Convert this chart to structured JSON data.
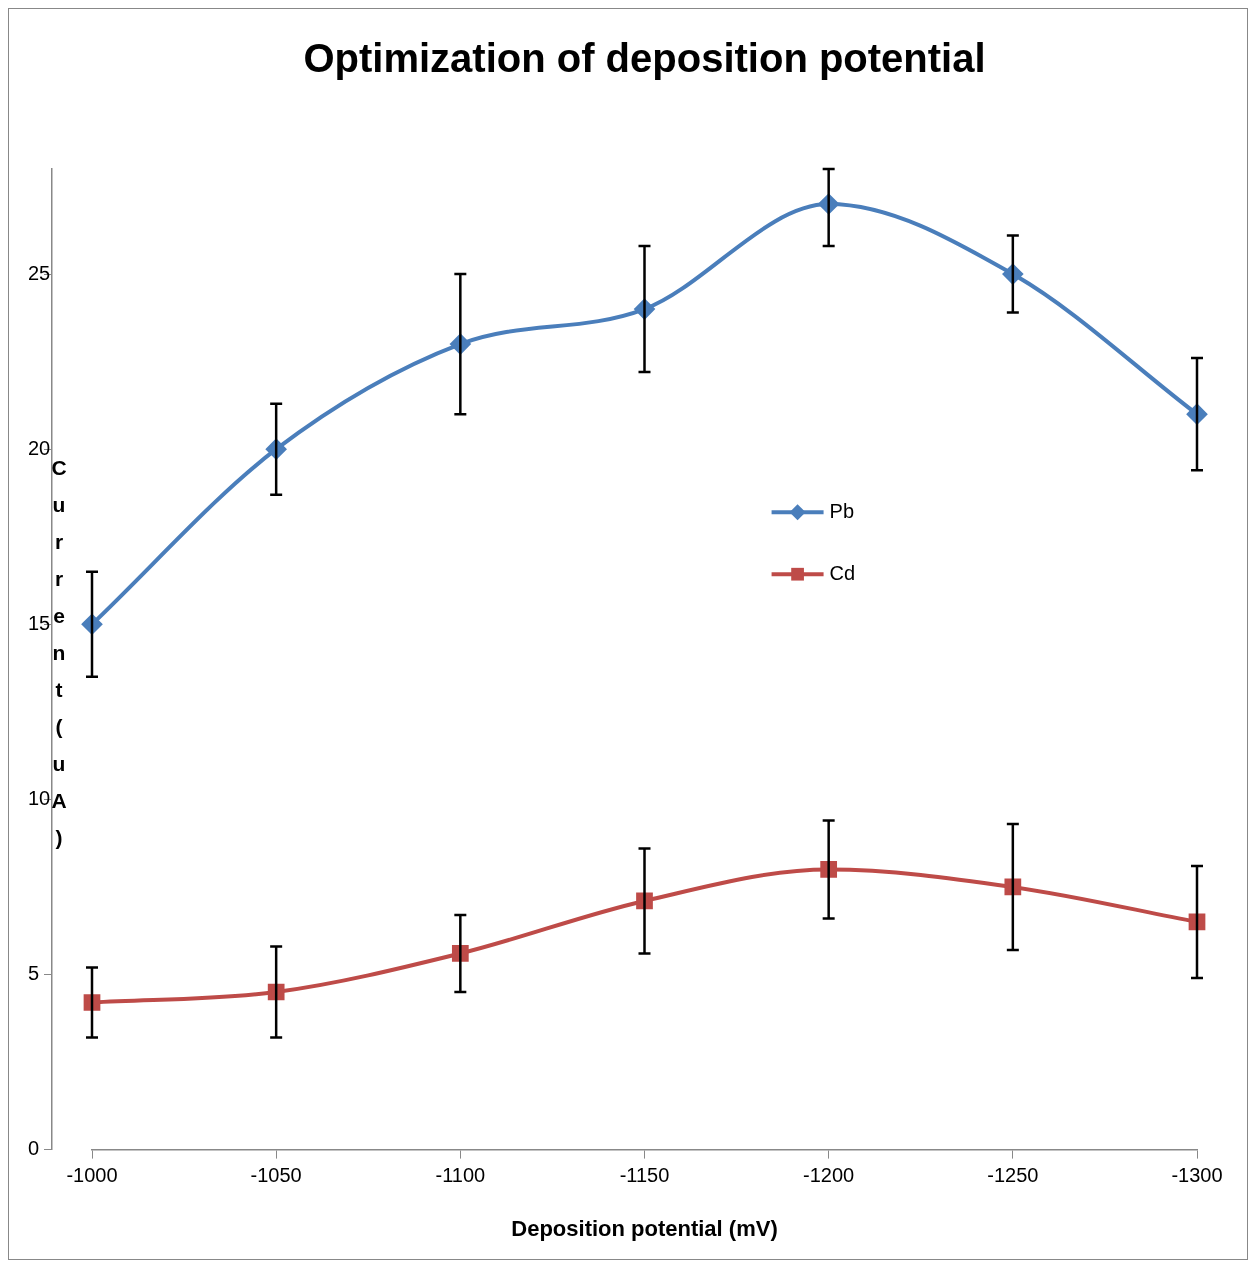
{
  "chart_data": {
    "type": "line",
    "title": "Optimization of deposition potential",
    "xlabel": "Deposition potential (mV)",
    "ylabel": "Current (uA)",
    "categories": [
      "-1000",
      "-1050",
      "-1100",
      "-1150",
      "-1200",
      "-1250",
      "-1300"
    ],
    "ylim": [
      0,
      28
    ],
    "yticks": [
      0,
      5,
      10,
      15,
      20,
      25
    ],
    "grid": false,
    "legend": "right",
    "line_style": "solid",
    "series": [
      {
        "name": "Pb",
        "color": "#4a7ebb",
        "marker": "diamond",
        "values": [
          15,
          20,
          23,
          24,
          27,
          25,
          21
        ],
        "errors": [
          1.5,
          1.3,
          2,
          1.8,
          [
            25.8,
            28
          ],
          1.1,
          1.6
        ]
      },
      {
        "name": "Cd",
        "color": "#be4b48",
        "marker": "square",
        "values": [
          4.2,
          4.5,
          5.6,
          7.1,
          8.0,
          7.5,
          6.5
        ],
        "errors": [
          1,
          1.3,
          1.1,
          1.5,
          1.4,
          1.8,
          1.6
        ]
      }
    ]
  }
}
